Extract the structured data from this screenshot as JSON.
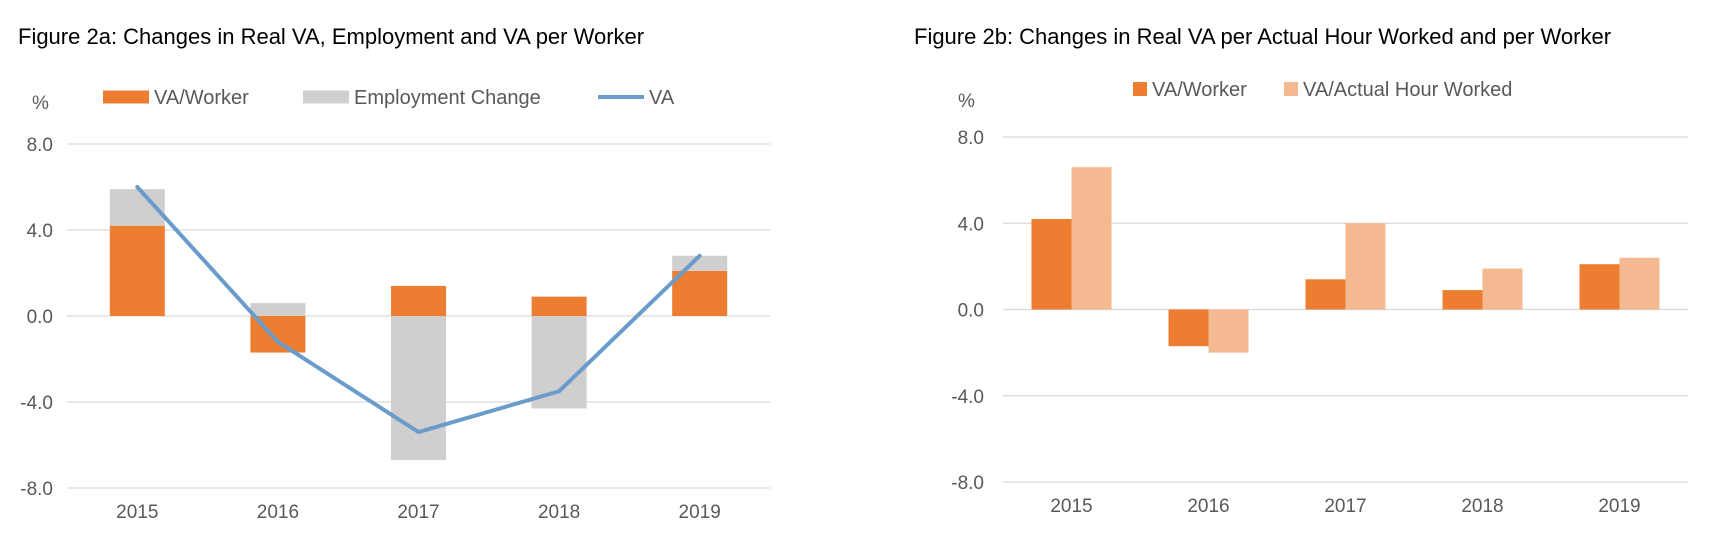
{
  "chart_data": [
    {
      "type": "bar",
      "title": "Figure 2a: Changes in Real VA, Employment and VA per Worker",
      "ylabel": "%",
      "ylim": [
        -8,
        8
      ],
      "yticks": [
        "8.0",
        "4.0",
        "0.0",
        "-4.0",
        "-8.0"
      ],
      "categories": [
        "2015",
        "2016",
        "2017",
        "2018",
        "2019"
      ],
      "stacked": true,
      "grid": true,
      "legend_position": "top",
      "series": [
        {
          "name": "VA/Worker",
          "kind": "bar",
          "color": "#ED7D31",
          "values": [
            4.2,
            -1.7,
            1.4,
            0.9,
            2.1
          ]
        },
        {
          "name": "Employment Change",
          "kind": "bar",
          "color": "#D0CECE",
          "values": [
            1.7,
            0.6,
            -6.7,
            -4.3,
            0.7
          ]
        },
        {
          "name": "VA",
          "kind": "line",
          "color": "#6A9CCB",
          "values": [
            6.0,
            -1.2,
            -5.4,
            -3.5,
            2.8
          ]
        }
      ]
    },
    {
      "type": "bar",
      "title": "Figure 2b: Changes in Real VA per Actual Hour Worked and per Worker",
      "ylabel": "%",
      "ylim": [
        -8,
        8
      ],
      "yticks": [
        "8.0",
        "4.0",
        "0.0",
        "-4.0",
        "-8.0"
      ],
      "categories": [
        "2015",
        "2016",
        "2017",
        "2018",
        "2019"
      ],
      "stacked": false,
      "grid": true,
      "legend_position": "top",
      "series": [
        {
          "name": "VA/Worker",
          "kind": "bar",
          "color": "#ED7D31",
          "values": [
            4.2,
            -1.7,
            1.4,
            0.9,
            2.1
          ]
        },
        {
          "name": "VA/Actual Hour Worked",
          "kind": "bar",
          "color": "#F4B990",
          "values": [
            6.6,
            -2.0,
            4.0,
            1.9,
            2.4
          ]
        }
      ]
    }
  ]
}
